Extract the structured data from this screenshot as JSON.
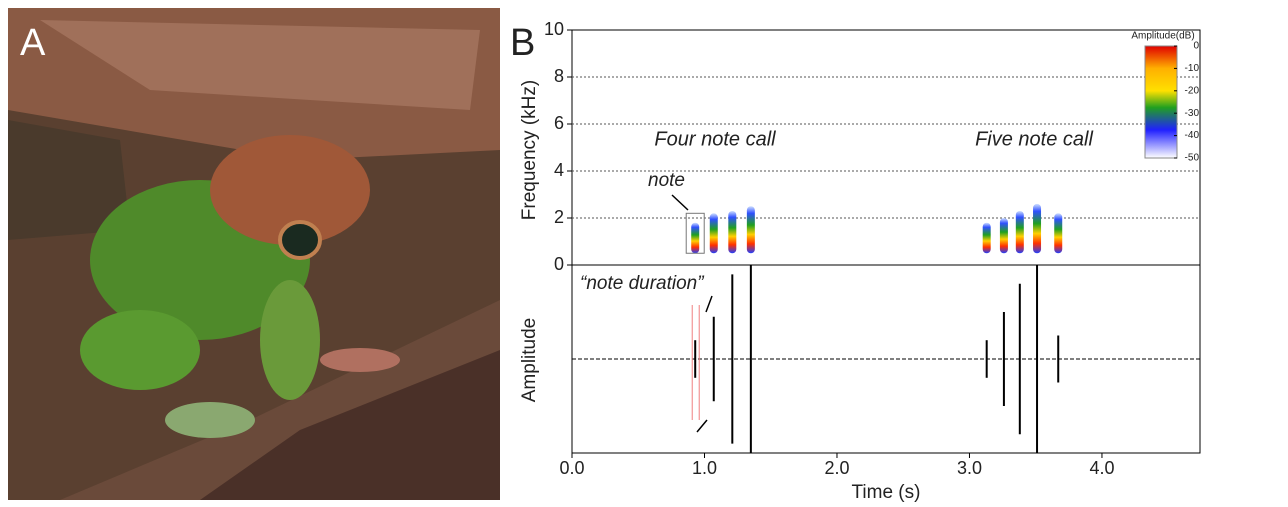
{
  "photo": {
    "panel_label": "A"
  },
  "chart_data": [
    {
      "type": "spectrogram",
      "panel_label": "B",
      "ylabel": "Frequency (kHz)",
      "xlim": [
        0,
        4.74
      ],
      "ylim": [
        0,
        10
      ],
      "yticks": [
        0,
        2,
        4,
        6,
        8,
        10
      ],
      "grid": true,
      "x": [
        0.93,
        1.07,
        1.21,
        1.35,
        3.13,
        3.26,
        3.38,
        3.51,
        3.67
      ],
      "values": [
        1.8,
        2.2,
        2.3,
        2.5,
        1.8,
        2.0,
        2.3,
        2.6,
        2.2
      ],
      "annotations": [
        "Four note call",
        "Five note call",
        "note"
      ],
      "colorbar": {
        "title": "Amplitude(dB)",
        "clim": [
          -50,
          0
        ],
        "ticks": [
          0,
          -10,
          -20,
          -30,
          -40,
          -50
        ]
      }
    },
    {
      "type": "waveform",
      "ylabel": "Amplitude",
      "xlabel": "Time (s)",
      "xlim": [
        0,
        4.74
      ],
      "ylim": [
        -1,
        1
      ],
      "xticks": [
        {
          "value": 0,
          "label": "0.0"
        },
        {
          "value": 1,
          "label": "1.0"
        },
        {
          "value": 2,
          "label": "2.0"
        },
        {
          "value": 3,
          "label": "3.0"
        },
        {
          "value": 4,
          "label": "4.0"
        }
      ],
      "x": [
        0.93,
        1.07,
        1.21,
        1.35,
        3.13,
        3.26,
        3.38,
        3.51,
        3.67
      ],
      "values": [
        0.2,
        0.45,
        0.9,
        1.0,
        0.2,
        0.5,
        0.8,
        1.0,
        0.25
      ],
      "annotations": [
        "“note duration”"
      ]
    }
  ]
}
